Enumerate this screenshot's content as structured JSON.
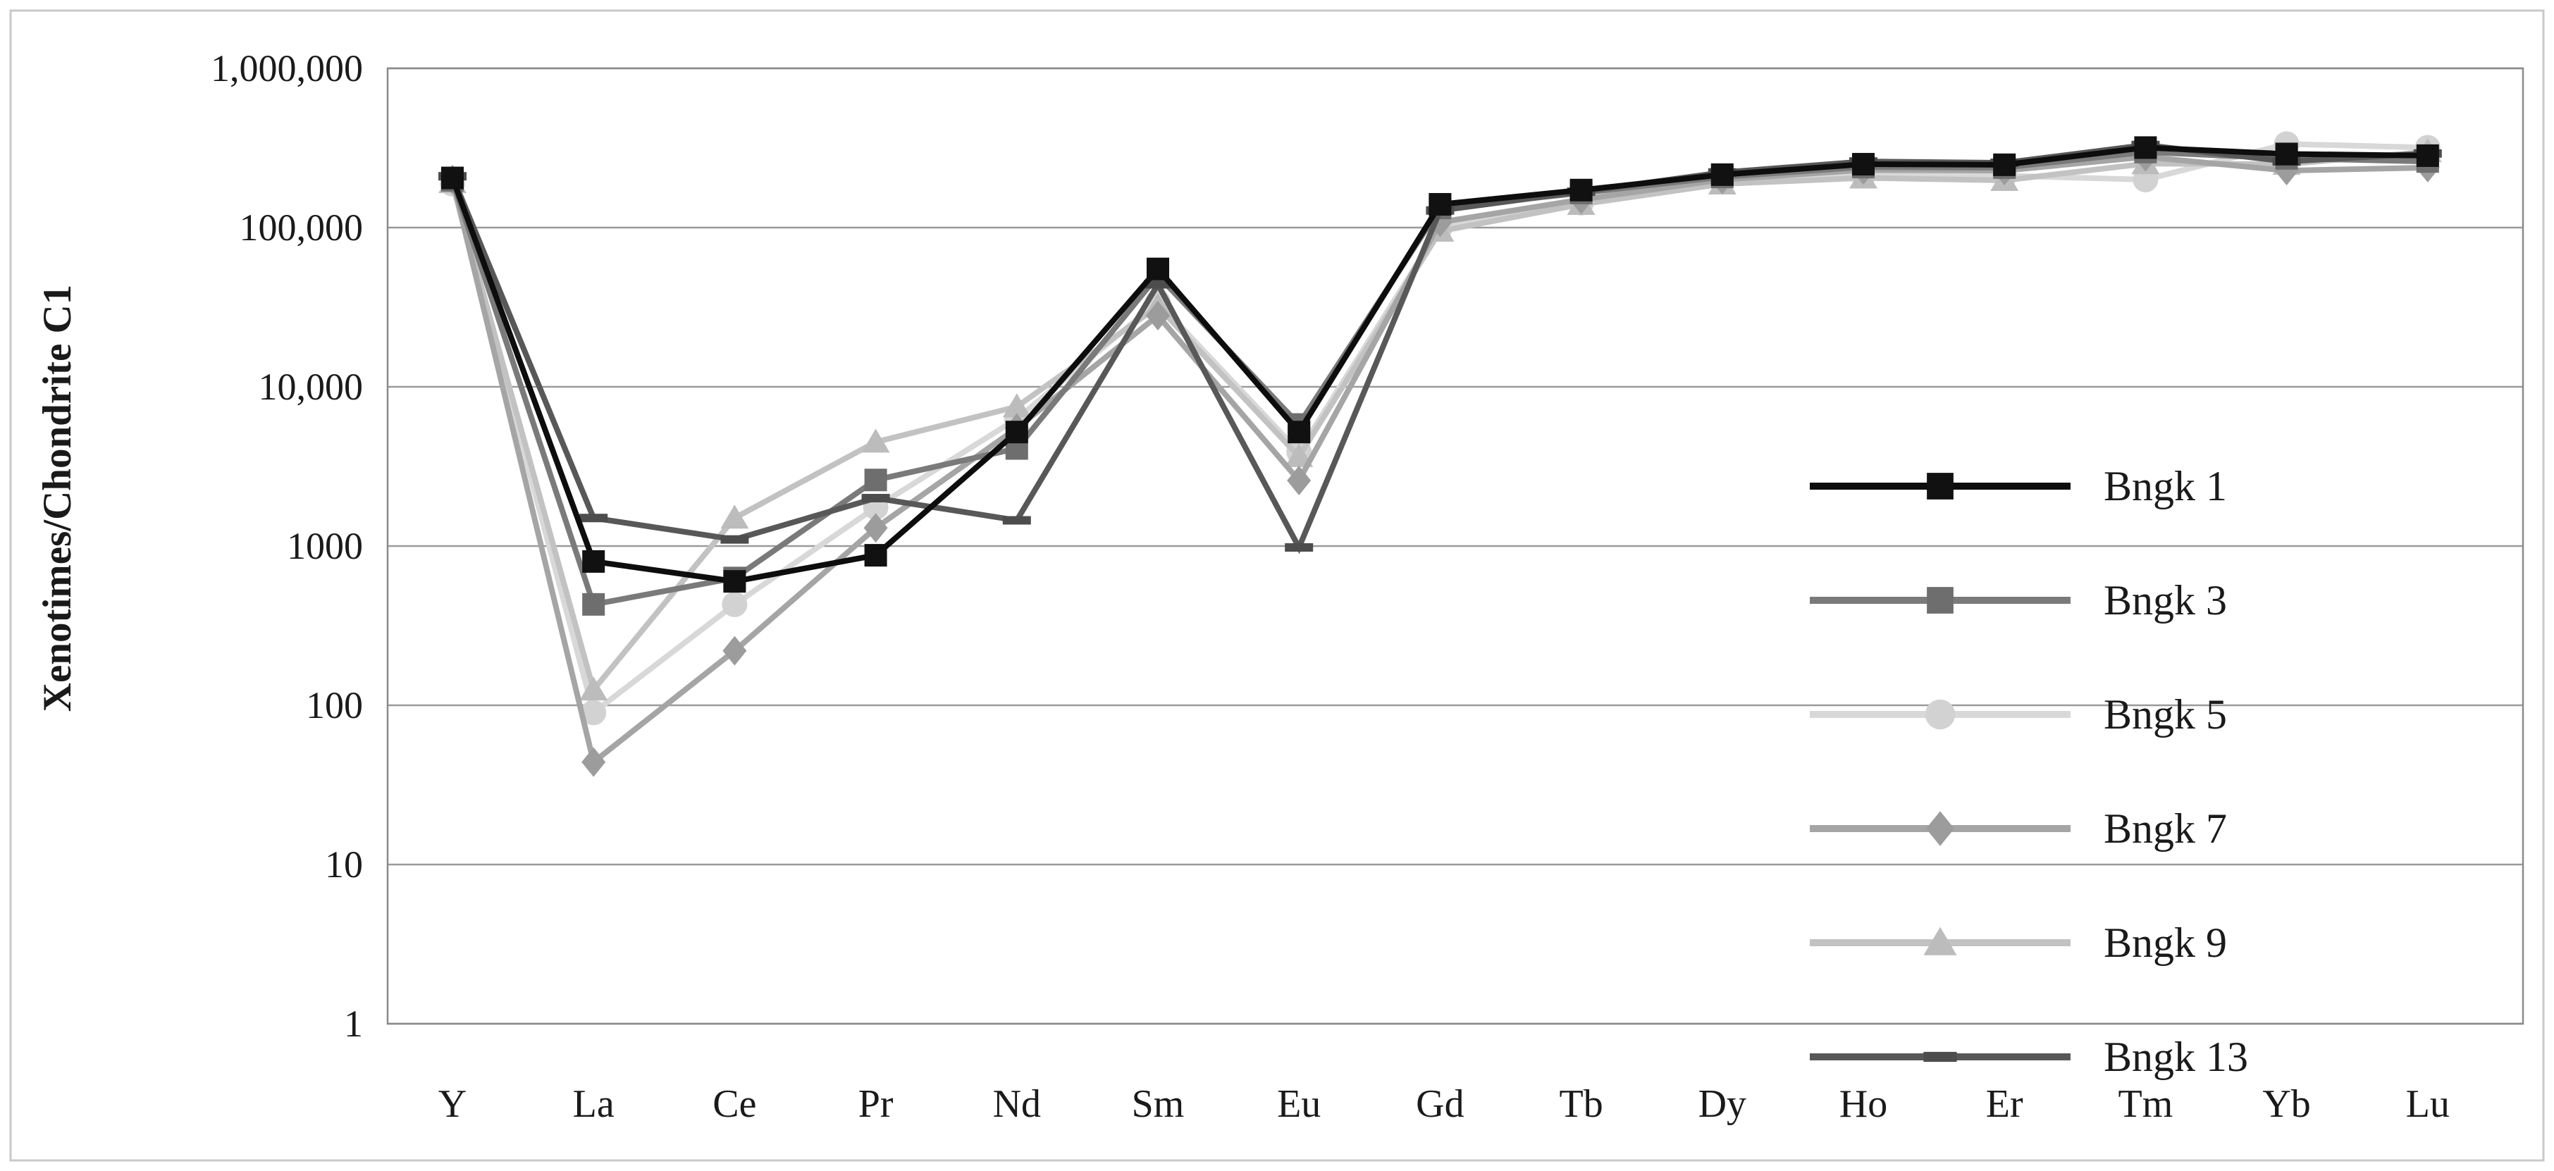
{
  "chart_data": {
    "type": "line",
    "title": "",
    "xlabel": "",
    "ylabel": "Xenotimes/Chondrite C1",
    "y_scale": "log",
    "ylim": [
      1,
      1000000
    ],
    "grid": "horizontal-decades",
    "legend_position": "right-middle",
    "background_color": "#ffffff",
    "frame_color": "#c9c9c9",
    "gridline_color": "#9a9a9a",
    "axis_text_color": "#1a1a1a",
    "y_ticks": [
      {
        "label": "1,000,000",
        "value": 1000000
      },
      {
        "label": "100,000",
        "value": 100000
      },
      {
        "label": "10,000",
        "value": 10000
      },
      {
        "label": "1000",
        "value": 1000
      },
      {
        "label": "100",
        "value": 100
      },
      {
        "label": "10",
        "value": 10
      },
      {
        "label": "1",
        "value": 1
      }
    ],
    "categories": [
      "Y",
      "La",
      "Ce",
      "Pr",
      "Nd",
      "Sm",
      "Eu",
      "Gd",
      "Tb",
      "Dy",
      "Ho",
      "Er",
      "Tm",
      "Yb",
      "Lu"
    ],
    "series": [
      {
        "name": "Bngk 5",
        "marker": "circle",
        "line_color": "#d8d8d8",
        "marker_color": "#d2d2d2",
        "values": [
          188000,
          90,
          430,
          1750,
          6300,
          34000,
          3900,
          100000,
          143000,
          195000,
          215000,
          212000,
          200000,
          335000,
          318000
        ]
      },
      {
        "name": "Bngk 9",
        "marker": "triangle",
        "line_color": "#c2c2c2",
        "marker_color": "#bcbcbc",
        "values": [
          192000,
          125,
          1500,
          4500,
          7500,
          32000,
          3650,
          95000,
          140000,
          188000,
          205000,
          198000,
          252000,
          250000,
          300000
        ]
      },
      {
        "name": "Bngk 7",
        "marker": "diamond",
        "line_color": "#a5a5a5",
        "marker_color": "#9c9c9c",
        "values": [
          200000,
          44,
          220,
          1300,
          5500,
          28000,
          2580,
          108000,
          150000,
          200000,
          230000,
          228000,
          278000,
          228000,
          238000
        ]
      },
      {
        "name": "Bngk 3",
        "marker": "square",
        "line_color": "#7a7a7a",
        "marker_color": "#6e6e6e",
        "values": [
          198000,
          430,
          630,
          2600,
          4100,
          50000,
          5800,
          133000,
          165000,
          208000,
          240000,
          238000,
          298000,
          272000,
          260000
        ]
      },
      {
        "name": "Bngk 13",
        "marker": "dash",
        "line_color": "#585858",
        "marker_color": "#4d4d4d",
        "values": [
          210000,
          1500,
          1100,
          2000,
          1450,
          44000,
          980,
          128000,
          168000,
          222000,
          260000,
          255000,
          330000,
          260000,
          292000
        ]
      },
      {
        "name": "Bngk 1",
        "marker": "square",
        "line_color": "#0d0d0d",
        "marker_color": "#111111",
        "values": [
          205000,
          800,
          600,
          875,
          5200,
          55000,
          5200,
          140000,
          172000,
          215000,
          250000,
          248000,
          318000,
          290000,
          283000
        ]
      }
    ],
    "legend_order": [
      "Bngk 1",
      "Bngk 3",
      "Bngk 5",
      "Bngk 7",
      "Bngk 9",
      "Bngk 13"
    ]
  }
}
